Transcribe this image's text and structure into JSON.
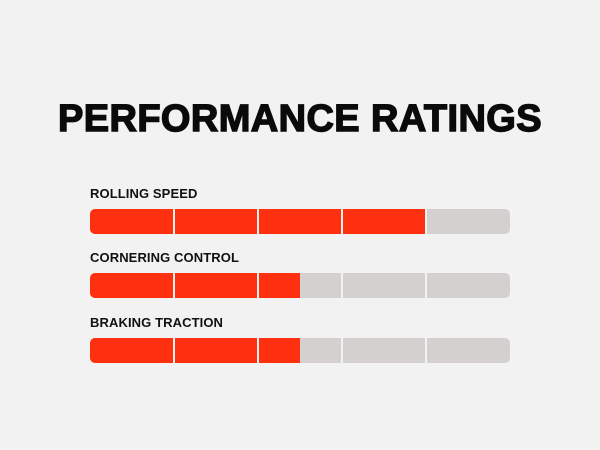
{
  "title": "PERFORMANCE RATINGS",
  "colors": {
    "background": "#f2f2f2",
    "fill": "#ff3010",
    "track": "#d4d0d0",
    "text": "#0a0a0a"
  },
  "scale_max": 5,
  "ratings": [
    {
      "label": "ROLLING SPEED",
      "value": 4
    },
    {
      "label": "CORNERING CONTROL",
      "value": 2.5
    },
    {
      "label": "BRAKING TRACTION",
      "value": 2.5
    }
  ]
}
